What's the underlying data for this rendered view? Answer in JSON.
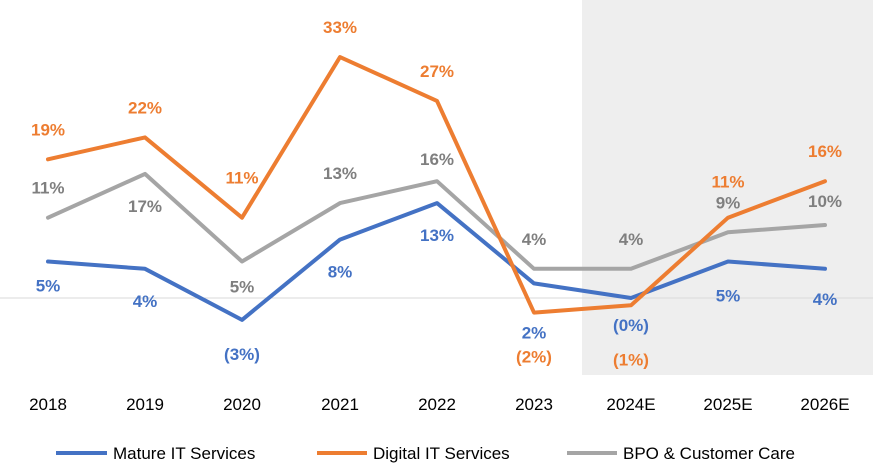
{
  "chart_data": {
    "type": "line",
    "title": "",
    "xlabel": "",
    "ylabel": "",
    "categories": [
      "2018",
      "2019",
      "2020",
      "2021",
      "2022",
      "2023",
      "2024E",
      "2025E",
      "2026E"
    ],
    "ylim": [
      -5,
      36
    ],
    "grid": false,
    "baseline": 0,
    "shaded_region": {
      "from": "2024E",
      "to": "2026E",
      "color": "#eeeeee"
    },
    "legend": "bottom",
    "series": [
      {
        "name": "Mature IT Services",
        "color": "#4472c4",
        "values": [
          5,
          4,
          -3,
          8,
          13,
          2,
          0,
          5,
          4
        ],
        "labels": [
          "5%",
          "4%",
          "(3%)",
          "8%",
          "13%",
          "2%",
          "(0%)",
          "5%",
          "4%"
        ]
      },
      {
        "name": "Digital IT Services",
        "color": "#ed7d31",
        "values": [
          19,
          22,
          11,
          33,
          27,
          -2,
          -1,
          11,
          16
        ],
        "labels": [
          "19%",
          "22%",
          "11%",
          "33%",
          "27%",
          "(2%)",
          "(1%)",
          "11%",
          "16%"
        ]
      },
      {
        "name": "BPO & Customer Care",
        "color": "#a5a5a5",
        "values": [
          11,
          17,
          5,
          13,
          16,
          4,
          4,
          9,
          10
        ],
        "labels": [
          "11%",
          "17%",
          "5%",
          "13%",
          "16%",
          "4%",
          "4%",
          "9%",
          "10%"
        ]
      }
    ]
  }
}
